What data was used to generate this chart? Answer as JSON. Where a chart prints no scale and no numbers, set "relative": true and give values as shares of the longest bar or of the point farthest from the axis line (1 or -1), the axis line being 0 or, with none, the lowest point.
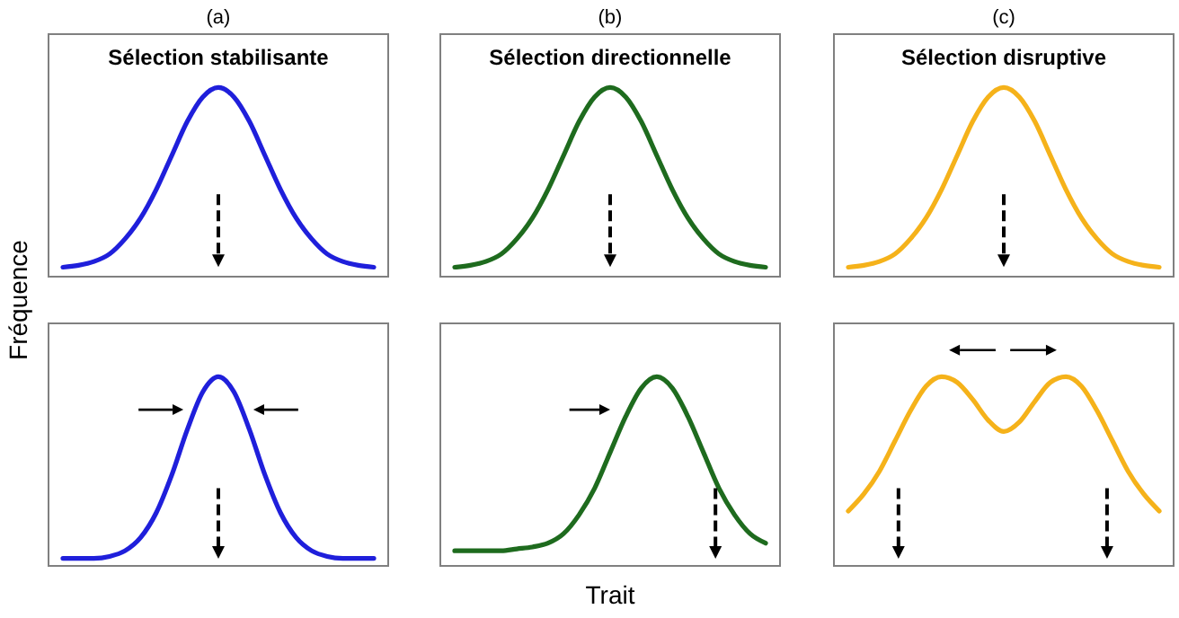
{
  "chart_data": [
    {
      "type": "line",
      "title": "Sélection stabilisante",
      "annotations": [
        "(a)"
      ],
      "ylabel": "Fréquence",
      "relative": true,
      "categories": [
        null,
        null,
        null,
        null,
        null,
        null,
        null,
        null,
        null,
        null,
        null,
        null,
        null,
        null,
        null,
        null,
        null,
        null,
        null,
        null,
        null
      ],
      "series": [
        {
          "color": "#1f1fdb",
          "values": [
            0.05,
            0.06,
            0.08,
            0.12,
            0.2,
            0.31,
            0.46,
            0.64,
            0.82,
            0.95,
            1,
            0.95,
            0.82,
            0.64,
            0.46,
            0.31,
            0.2,
            0.12,
            0.08,
            0.06,
            0.05
          ]
        }
      ]
    },
    {
      "type": "line",
      "title": "Sélection directionnelle",
      "annotations": [
        "(b)"
      ],
      "relative": true,
      "categories": [
        null,
        null,
        null,
        null,
        null,
        null,
        null,
        null,
        null,
        null,
        null,
        null,
        null,
        null,
        null,
        null,
        null,
        null,
        null,
        null,
        null
      ],
      "series": [
        {
          "color": "#1e6b1e",
          "values": [
            0.05,
            0.06,
            0.08,
            0.12,
            0.2,
            0.31,
            0.46,
            0.64,
            0.82,
            0.95,
            1,
            0.95,
            0.82,
            0.64,
            0.46,
            0.31,
            0.2,
            0.12,
            0.08,
            0.06,
            0.05
          ]
        }
      ]
    },
    {
      "type": "line",
      "title": "Sélection disruptive",
      "annotations": [
        "(c)"
      ],
      "relative": true,
      "categories": [
        null,
        null,
        null,
        null,
        null,
        null,
        null,
        null,
        null,
        null,
        null,
        null,
        null,
        null,
        null,
        null,
        null,
        null,
        null,
        null,
        null
      ],
      "series": [
        {
          "color": "#f5b21a",
          "values": [
            0.05,
            0.06,
            0.08,
            0.12,
            0.2,
            0.31,
            0.46,
            0.64,
            0.82,
            0.95,
            1,
            0.95,
            0.82,
            0.64,
            0.46,
            0.31,
            0.2,
            0.12,
            0.08,
            0.06,
            0.05
          ]
        }
      ]
    },
    {
      "type": "line",
      "relative": true,
      "categories": [
        null,
        null,
        null,
        null,
        null,
        null,
        null,
        null,
        null,
        null,
        null,
        null,
        null,
        null,
        null,
        null,
        null,
        null,
        null,
        null,
        null
      ],
      "series": [
        {
          "color": "#1f1fdb",
          "values": [
            0.04,
            0.04,
            0.04,
            0.05,
            0.08,
            0.15,
            0.28,
            0.48,
            0.72,
            0.92,
            1,
            0.92,
            0.72,
            0.48,
            0.28,
            0.15,
            0.08,
            0.05,
            0.04,
            0.04,
            0.04
          ]
        }
      ]
    },
    {
      "type": "line",
      "xlabel": "Trait",
      "relative": true,
      "categories": [
        null,
        null,
        null,
        null,
        null,
        null,
        null,
        null,
        null,
        null,
        null,
        null,
        null,
        null,
        null,
        null,
        null,
        null,
        null,
        null,
        null
      ],
      "series": [
        {
          "color": "#1e6b1e",
          "values": [
            0.08,
            0.08,
            0.08,
            0.08,
            0.09,
            0.1,
            0.12,
            0.17,
            0.27,
            0.41,
            0.6,
            0.79,
            0.94,
            1,
            0.94,
            0.79,
            0.6,
            0.41,
            0.27,
            0.17,
            0.12
          ]
        }
      ]
    },
    {
      "type": "line",
      "relative": true,
      "categories": [
        null,
        null,
        null,
        null,
        null,
        null,
        null,
        null,
        null,
        null,
        null,
        null,
        null,
        null,
        null,
        null,
        null,
        null,
        null,
        null,
        null
      ],
      "series": [
        {
          "color": "#f5b21a",
          "values": [
            0.29,
            0.38,
            0.5,
            0.66,
            0.82,
            0.95,
            1,
            0.97,
            0.88,
            0.77,
            0.71,
            0.76,
            0.87,
            0.97,
            1,
            0.95,
            0.82,
            0.66,
            0.5,
            0.38,
            0.29
          ]
        }
      ]
    }
  ]
}
